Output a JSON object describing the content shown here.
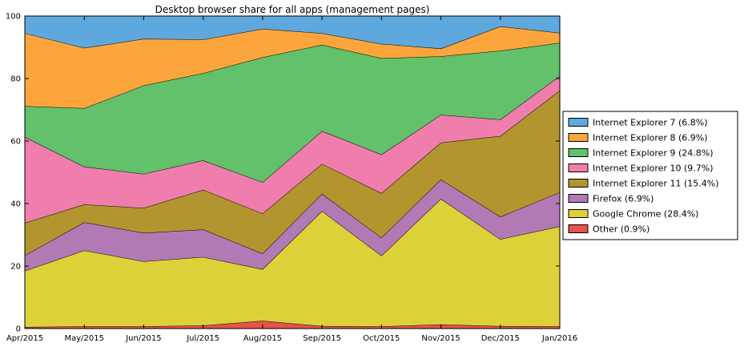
{
  "chart_data": {
    "type": "area",
    "stacked": true,
    "title": "Desktop browser share for all apps (management pages)",
    "xlabel": "",
    "ylabel": "",
    "ylim": [
      0,
      100
    ],
    "yticks": [
      "0",
      "20",
      "40",
      "60",
      "80",
      "100"
    ],
    "categories": [
      "Apr/2015",
      "May/2015",
      "Jun/2015",
      "Jul/2015",
      "Aug/2015",
      "Sep/2015",
      "Oct/2015",
      "Nov/2015",
      "Dec/2015",
      "Jan/2016"
    ],
    "legend_position": "center-right",
    "series": [
      {
        "name": "Other (0.9%)",
        "color": "#e5534b",
        "values": [
          0.5,
          0.7,
          0.7,
          1.0,
          2.5,
          0.8,
          0.7,
          1.3,
          0.8,
          0.7
        ]
      },
      {
        "name": "Google Chrome (28.4%)",
        "color": "#ddd13a",
        "values": [
          18.0,
          24.3,
          20.8,
          21.9,
          16.5,
          36.8,
          22.6,
          40.2,
          27.8,
          32.0
        ]
      },
      {
        "name": "Firefox (6.9%)",
        "color": "#b27ab5",
        "values": [
          4.9,
          9.0,
          9.1,
          8.8,
          5.0,
          5.5,
          5.8,
          6.2,
          7.2,
          10.9
        ]
      },
      {
        "name": "Internet Explorer 11 (15.4%)",
        "color": "#b39530",
        "values": [
          10.4,
          5.7,
          8.0,
          12.7,
          12.8,
          9.6,
          14.2,
          11.8,
          25.8,
          32.6
        ]
      },
      {
        "name": "Internet Explorer 10  (9.7%)",
        "color": "#f07ead",
        "values": [
          27.5,
          12.1,
          10.9,
          9.4,
          10.0,
          10.5,
          12.4,
          8.9,
          5.3,
          4.6
        ]
      },
      {
        "name": "Internet Explorer 9  (24.8%)",
        "color": "#62c16a",
        "values": [
          9.9,
          18.7,
          28.3,
          27.9,
          40.0,
          27.6,
          30.8,
          18.7,
          22.0,
          10.6
        ]
      },
      {
        "name": "Internet Explorer 8  (6.9%)",
        "color": "#fda53d",
        "values": [
          23.3,
          19.3,
          14.9,
          10.8,
          9.1,
          3.7,
          4.6,
          2.5,
          7.8,
          3.2
        ]
      },
      {
        "name": "Internet Explorer 7 (6.8%)",
        "color": "#5fa8dd",
        "values": [
          5.5,
          10.2,
          7.3,
          7.5,
          4.1,
          5.5,
          8.9,
          10.4,
          3.3,
          5.4
        ]
      }
    ]
  }
}
